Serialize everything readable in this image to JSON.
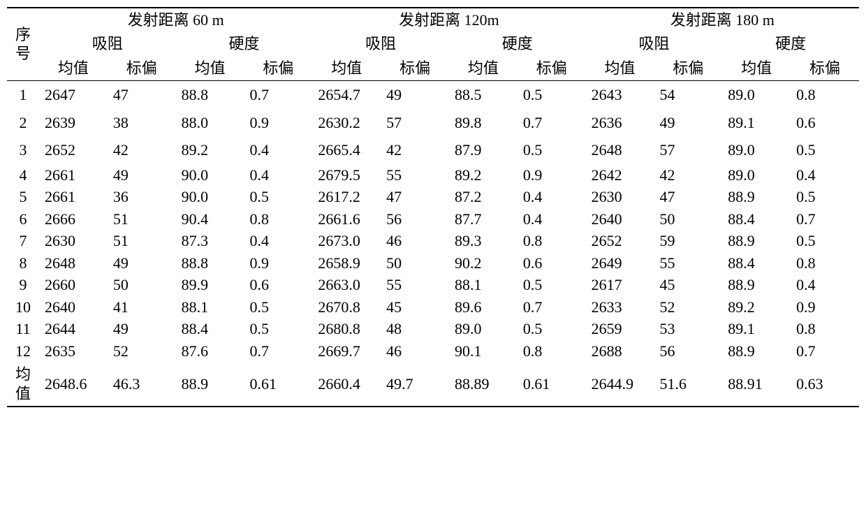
{
  "type": "table",
  "background_color": "#ffffff",
  "text_color": "#000000",
  "border_color": "#000000",
  "font_family": "SimSun / Songti (serif CJK)",
  "header_fontsize_pt": 16,
  "cell_fontsize_pt": 16,
  "seq_label": "序号",
  "mean_row_label": "均值",
  "distance_groups": [
    {
      "label": "发射距离 60 m"
    },
    {
      "label": "发射距离 120m"
    },
    {
      "label": "发射距离 180 m"
    }
  ],
  "metric_labels": {
    "a": "吸阻",
    "b": "硬度"
  },
  "stat_labels": {
    "mean": "均值",
    "std": "标偏"
  },
  "columns": [
    "序号",
    "d60-吸阻-均值",
    "d60-吸阻-标偏",
    "d60-硬度-均值",
    "d60-硬度-标偏",
    "d120-吸阻-均值",
    "d120-吸阻-标偏",
    "d120-硬度-均值",
    "d120-硬度-标偏",
    "d180-吸阻-均值",
    "d180-吸阻-标偏",
    "d180-硬度-均值",
    "d180-硬度-标偏"
  ],
  "rows": [
    {
      "seq": "1",
      "v": [
        "2647",
        "47",
        "88.8",
        "0.7",
        "2654.7",
        "49",
        "88.5",
        "0.5",
        "2643",
        "54",
        "89.0",
        "0.8"
      ]
    },
    {
      "seq": "2",
      "v": [
        "2639",
        "38",
        "88.0",
        "0.9",
        "2630.2",
        "57",
        "89.8",
        "0.7",
        "2636",
        "49",
        "89.1",
        "0.6"
      ]
    },
    {
      "seq": "3",
      "v": [
        "2652",
        "42",
        "89.2",
        "0.4",
        "2665.4",
        "42",
        "87.9",
        "0.5",
        "2648",
        "57",
        "89.0",
        "0.5"
      ]
    },
    {
      "seq": "4",
      "v": [
        "2661",
        "49",
        "90.0",
        "0.4",
        "2679.5",
        "55",
        "89.2",
        "0.9",
        "2642",
        "42",
        "89.0",
        "0.4"
      ]
    },
    {
      "seq": "5",
      "v": [
        "2661",
        "36",
        "90.0",
        "0.5",
        "2617.2",
        "47",
        "87.2",
        "0.4",
        "2630",
        "47",
        "88.9",
        "0.5"
      ]
    },
    {
      "seq": "6",
      "v": [
        "2666",
        "51",
        "90.4",
        "0.8",
        "2661.6",
        "56",
        "87.7",
        "0.4",
        "2640",
        "50",
        "88.4",
        "0.7"
      ]
    },
    {
      "seq": "7",
      "v": [
        "2630",
        "51",
        "87.3",
        "0.4",
        "2673.0",
        "46",
        "89.3",
        "0.8",
        "2652",
        "59",
        "88.9",
        "0.5"
      ]
    },
    {
      "seq": "8",
      "v": [
        "2648",
        "49",
        "88.8",
        "0.9",
        "2658.9",
        "50",
        "90.2",
        "0.6",
        "2649",
        "55",
        "88.4",
        "0.8"
      ]
    },
    {
      "seq": "9",
      "v": [
        "2660",
        "50",
        "89.9",
        "0.6",
        "2663.0",
        "55",
        "88.1",
        "0.5",
        "2617",
        "45",
        "88.9",
        "0.4"
      ]
    },
    {
      "seq": "10",
      "v": [
        "2640",
        "41",
        "88.1",
        "0.5",
        "2670.8",
        "45",
        "89.6",
        "0.7",
        "2633",
        "52",
        "89.2",
        "0.9"
      ]
    },
    {
      "seq": "11",
      "v": [
        "2644",
        "49",
        "88.4",
        "0.5",
        "2680.8",
        "48",
        "89.0",
        "0.5",
        "2659",
        "53",
        "89.1",
        "0.8"
      ]
    },
    {
      "seq": "12",
      "v": [
        "2635",
        "52",
        "87.6",
        "0.7",
        "2669.7",
        "46",
        "90.1",
        "0.8",
        "2688",
        "56",
        "88.9",
        "0.7"
      ]
    }
  ],
  "summary": {
    "seq": "均值",
    "v": [
      "2648.6",
      "46.3",
      "88.9",
      "0.61",
      "2660.4",
      "49.7",
      "88.89",
      "0.61",
      "2644.9",
      "51.6",
      "88.91",
      "0.63"
    ]
  }
}
